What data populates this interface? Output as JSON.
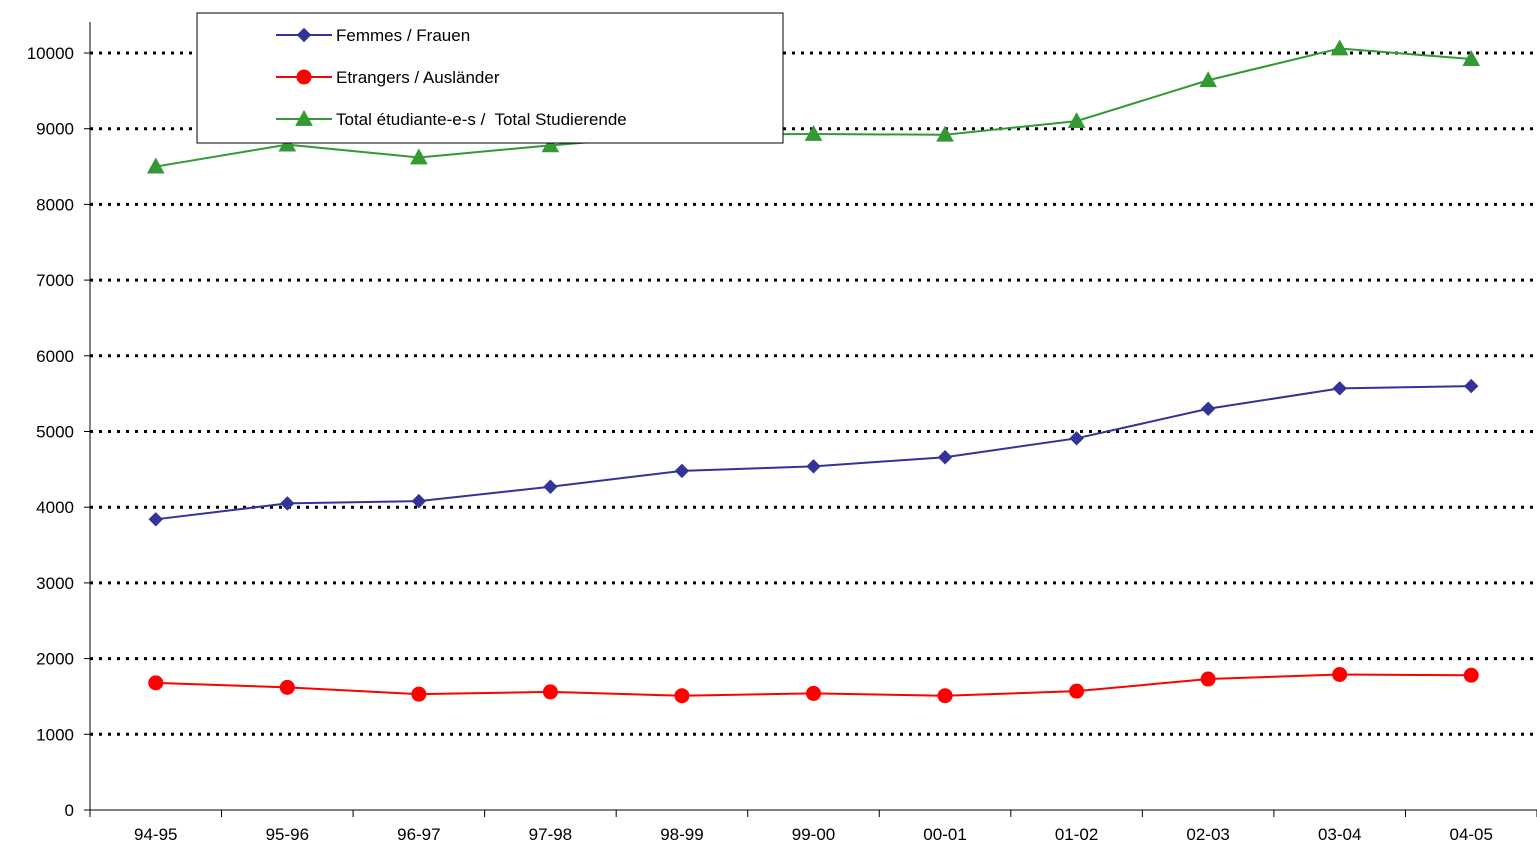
{
  "chart_data": {
    "type": "line",
    "title": "",
    "xlabel": "",
    "ylabel": "",
    "ylim": [
      0,
      10000
    ],
    "ytick_step": 1000,
    "grid": true,
    "legend_position": "top-left",
    "categories": [
      "94-95",
      "95-96",
      "96-97",
      "97-98",
      "98-99",
      "99-00",
      "00-01",
      "01-02",
      "02-03",
      "03-04",
      "04-05"
    ],
    "series": [
      {
        "name": "Femmes / Frauen",
        "color": "#333399",
        "marker": "diamond",
        "values": [
          3840,
          4050,
          4080,
          4270,
          4480,
          4540,
          4660,
          4910,
          5300,
          5570,
          5600
        ]
      },
      {
        "name": "Etrangers / Ausländer",
        "color": "#ff0000",
        "marker": "circle",
        "values": [
          1680,
          1620,
          1530,
          1560,
          1510,
          1540,
          1510,
          1570,
          1730,
          1790,
          1780
        ]
      },
      {
        "name": "Total étudiante-e-s /  Total Studierende",
        "color": "#339933",
        "marker": "triangle",
        "values": [
          8500,
          8790,
          8620,
          8780,
          8920,
          8930,
          8920,
          9100,
          9640,
          10060,
          9920
        ]
      }
    ]
  }
}
